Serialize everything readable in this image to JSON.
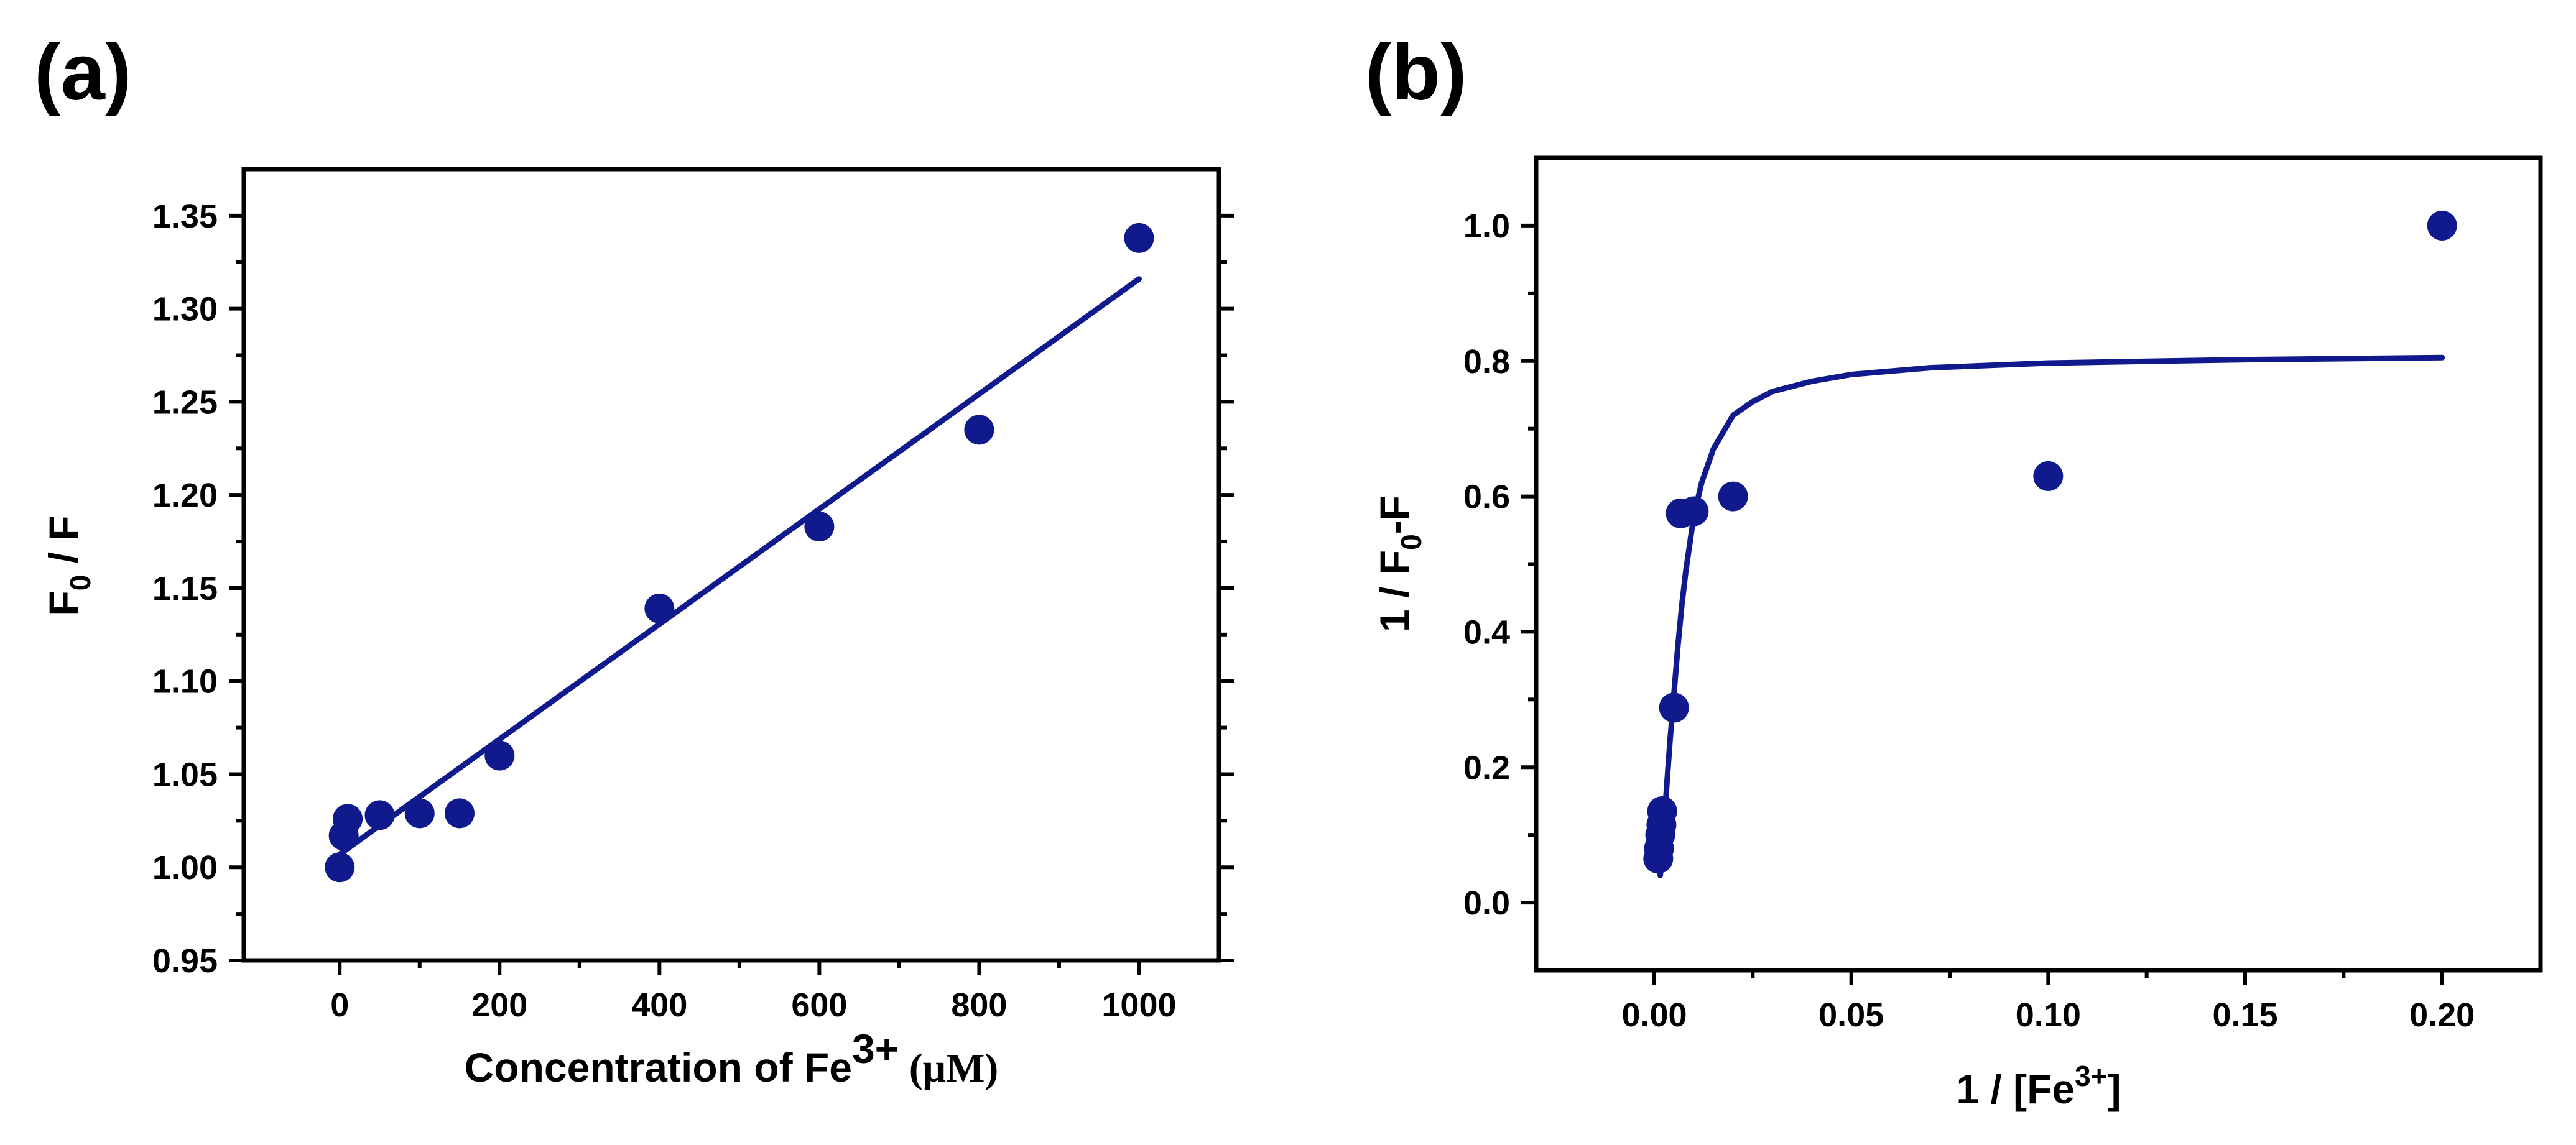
{
  "colors": {
    "series": "#101a8c",
    "axis": "#000000",
    "background": "#ffffff"
  },
  "chart_data": [
    {
      "panel_label": "(a)",
      "type": "scatter",
      "fit": "linear",
      "title": "",
      "xlabel": {
        "main": "Concentration of Fe",
        "sup": "3+",
        "unit": " (μM)"
      },
      "ylabel": {
        "main": "F",
        "sub": "0",
        "rest": " / F"
      },
      "xlim": [
        -120,
        1100
      ],
      "ylim": [
        0.95,
        1.375
      ],
      "xticks": [
        0,
        200,
        400,
        600,
        800,
        1000
      ],
      "xtick_labels": [
        "0",
        "200",
        "400",
        "600",
        "800",
        "1000"
      ],
      "yticks": [
        0.95,
        1.0,
        1.05,
        1.1,
        1.15,
        1.2,
        1.25,
        1.3,
        1.35
      ],
      "ytick_labels": [
        "0.95",
        "1.00",
        "1.05",
        "1.10",
        "1.15",
        "1.20",
        "1.25",
        "1.30",
        "1.35"
      ],
      "x": [
        0,
        5,
        10,
        50,
        100,
        150,
        200,
        400,
        600,
        800,
        1000
      ],
      "y": [
        1.0,
        1.017,
        1.026,
        1.028,
        1.029,
        1.029,
        1.06,
        1.139,
        1.183,
        1.235,
        1.338
      ],
      "fit_line": {
        "x": [
          0,
          1000
        ],
        "y": [
          1.007,
          1.316
        ]
      }
    },
    {
      "panel_label": "(b)",
      "type": "scatter",
      "fit": "saturation curve",
      "title": "",
      "xlabel": {
        "main": "1 / [Fe",
        "sup": "3+",
        "rest": "]"
      },
      "ylabel": {
        "main": "1 / F",
        "sub": "0",
        "rest": "-F"
      },
      "xlim": [
        -0.03,
        0.225
      ],
      "ylim": [
        -0.1,
        1.1
      ],
      "xticks": [
        0.0,
        0.05,
        0.1,
        0.15,
        0.2
      ],
      "xtick_labels": [
        "0.00",
        "0.05",
        "0.10",
        "0.15",
        "0.20"
      ],
      "yticks": [
        0.0,
        0.2,
        0.4,
        0.6,
        0.8,
        1.0
      ],
      "ytick_labels": [
        "0.0",
        "0.2",
        "0.4",
        "0.6",
        "0.8",
        "1.0"
      ],
      "x": [
        0.001,
        0.0012,
        0.0015,
        0.0018,
        0.002,
        0.005,
        0.0067,
        0.01,
        0.02,
        0.1,
        0.2
      ],
      "y": [
        0.065,
        0.08,
        0.1,
        0.115,
        0.135,
        0.288,
        0.575,
        0.578,
        0.6,
        0.63,
        1.0
      ],
      "fit_curve": {
        "x": [
          0.0015,
          0.002,
          0.003,
          0.004,
          0.005,
          0.006,
          0.007,
          0.008,
          0.009,
          0.01,
          0.012,
          0.015,
          0.02,
          0.025,
          0.03,
          0.04,
          0.05,
          0.07,
          0.1,
          0.15,
          0.2
        ],
        "y": [
          0.04,
          0.08,
          0.16,
          0.24,
          0.31,
          0.38,
          0.44,
          0.49,
          0.53,
          0.57,
          0.62,
          0.67,
          0.72,
          0.74,
          0.755,
          0.77,
          0.78,
          0.79,
          0.797,
          0.802,
          0.805
        ]
      }
    }
  ]
}
